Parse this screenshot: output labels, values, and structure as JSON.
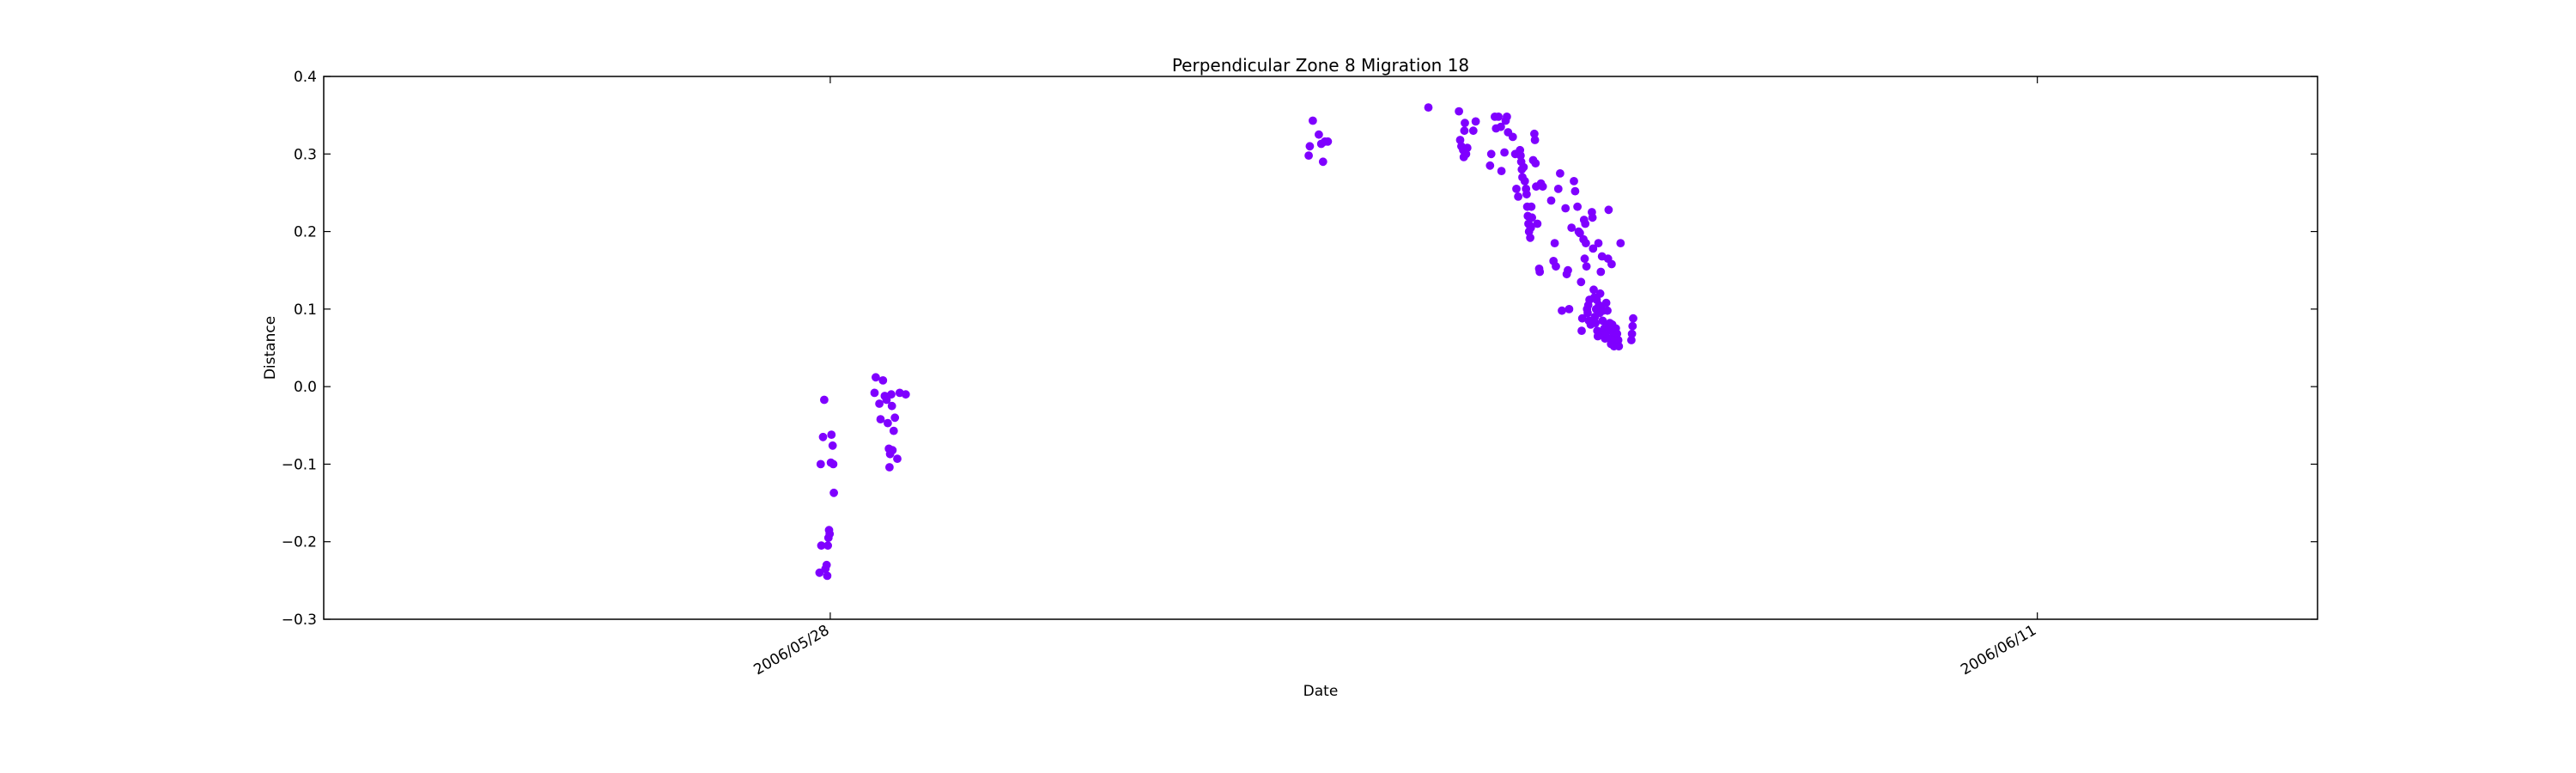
{
  "chart_data": {
    "type": "scatter",
    "title": "Perpendicular Zone 8 Migration 18",
    "xlabel": "Date",
    "ylabel": "Distance",
    "xlim": [
      "2006/05/22 03:00",
      "2006/06/14 06:00"
    ],
    "ylim": [
      -0.3,
      0.4
    ],
    "x_ticks": [
      "2006/05/28",
      "2006/06/11"
    ],
    "y_ticks": [
      "0.4",
      "0.3",
      "0.2",
      "0.1",
      "0.0",
      "−0.1",
      "−0.2",
      "−0.3"
    ],
    "y_tick_values": [
      0.4,
      0.3,
      0.2,
      0.1,
      0.0,
      -0.1,
      -0.2,
      -0.3
    ],
    "grid": false,
    "marker_color": "#7f00ff",
    "points": [
      [
        "2006/05/27 21:00",
        -0.24
      ],
      [
        "2006/05/27 21:30",
        -0.205
      ],
      [
        "2006/05/27 21:20",
        -0.1
      ],
      [
        "2006/05/27 22:00",
        -0.065
      ],
      [
        "2006/05/27 22:20",
        -0.017
      ],
      [
        "2006/05/27 22:40",
        -0.235
      ],
      [
        "2006/05/27 23:00",
        -0.23
      ],
      [
        "2006/05/27 23:10",
        -0.244
      ],
      [
        "2006/05/27 23:20",
        -0.205
      ],
      [
        "2006/05/27 23:30",
        -0.195
      ],
      [
        "2006/05/27 23:40",
        -0.185
      ],
      [
        "2006/05/27 23:50",
        -0.19
      ],
      [
        "2006/05/28 00:10",
        -0.098
      ],
      [
        "2006/05/28 00:20",
        -0.062
      ],
      [
        "2006/05/28 00:40",
        -0.076
      ],
      [
        "2006/05/28 00:50",
        -0.1
      ],
      [
        "2006/05/28 01:00",
        -0.137
      ],
      [
        "2006/05/28 12:20",
        -0.008
      ],
      [
        "2006/05/28 12:40",
        0.012
      ],
      [
        "2006/05/28 13:40",
        -0.022
      ],
      [
        "2006/05/28 14:00",
        -0.042
      ],
      [
        "2006/05/28 14:40",
        0.008
      ],
      [
        "2006/05/28 15:10",
        -0.012
      ],
      [
        "2006/05/28 15:40",
        -0.017
      ],
      [
        "2006/05/28 16:00",
        -0.047
      ],
      [
        "2006/05/28 16:20",
        -0.08
      ],
      [
        "2006/05/28 16:30",
        -0.104
      ],
      [
        "2006/05/28 16:40",
        -0.087
      ],
      [
        "2006/05/28 17:00",
        -0.01
      ],
      [
        "2006/05/28 17:10",
        -0.025
      ],
      [
        "2006/05/28 17:20",
        -0.082
      ],
      [
        "2006/05/28 17:40",
        -0.057
      ],
      [
        "2006/05/28 18:00",
        -0.04
      ],
      [
        "2006/05/28 18:40",
        -0.093
      ],
      [
        "2006/05/28 19:20",
        -0.008
      ],
      [
        "2006/05/28 21:00",
        -0.01
      ],
      [
        "2006/06/02 13:10",
        0.298
      ],
      [
        "2006/06/02 13:30",
        0.31
      ],
      [
        "2006/06/02 14:20",
        0.343
      ],
      [
        "2006/06/02 16:00",
        0.325
      ],
      [
        "2006/06/02 16:40",
        0.313
      ],
      [
        "2006/06/02 17:10",
        0.29
      ],
      [
        "2006/06/02 17:40",
        0.316
      ],
      [
        "2006/06/02 18:30",
        0.316
      ],
      [
        "2006/06/03 22:30",
        0.36
      ],
      [
        "2006/06/04 07:00",
        0.355
      ],
      [
        "2006/06/04 07:20",
        0.318
      ],
      [
        "2006/06/04 07:40",
        0.31
      ],
      [
        "2006/06/04 08:10",
        0.305
      ],
      [
        "2006/06/04 08:20",
        0.296
      ],
      [
        "2006/06/04 08:30",
        0.33
      ],
      [
        "2006/06/04 08:40",
        0.34
      ],
      [
        "2006/06/04 09:00",
        0.3
      ],
      [
        "2006/06/04 09:20",
        0.308
      ],
      [
        "2006/06/04 11:00",
        0.33
      ],
      [
        "2006/06/04 11:40",
        0.342
      ],
      [
        "2006/06/04 15:40",
        0.285
      ],
      [
        "2006/06/04 16:00",
        0.3
      ],
      [
        "2006/06/04 17:00",
        0.348
      ],
      [
        "2006/06/04 17:20",
        0.333
      ],
      [
        "2006/06/04 18:00",
        0.348
      ],
      [
        "2006/06/04 18:40",
        0.335
      ],
      [
        "2006/06/04 18:50",
        0.278
      ],
      [
        "2006/06/04 19:40",
        0.302
      ],
      [
        "2006/06/04 20:00",
        0.343
      ],
      [
        "2006/06/04 20:20",
        0.348
      ],
      [
        "2006/06/04 20:40",
        0.328
      ],
      [
        "2006/06/04 22:00",
        0.322
      ],
      [
        "2006/06/04 22:40",
        0.3
      ],
      [
        "2006/06/04 23:00",
        0.255
      ],
      [
        "2006/06/04 23:30",
        0.245
      ],
      [
        "2006/06/05 00:00",
        0.305
      ],
      [
        "2006/06/05 00:10",
        0.298
      ],
      [
        "2006/06/05 00:20",
        0.29
      ],
      [
        "2006/06/05 00:30",
        0.28
      ],
      [
        "2006/06/05 00:40",
        0.27
      ],
      [
        "2006/06/05 01:00",
        0.283
      ],
      [
        "2006/06/05 01:20",
        0.265
      ],
      [
        "2006/06/05 01:40",
        0.255
      ],
      [
        "2006/06/05 01:50",
        0.248
      ],
      [
        "2006/06/05 02:00",
        0.232
      ],
      [
        "2006/06/05 02:10",
        0.22
      ],
      [
        "2006/06/05 02:20",
        0.21
      ],
      [
        "2006/06/05 02:30",
        0.2
      ],
      [
        "2006/06/05 02:40",
        0.208
      ],
      [
        "2006/06/05 02:50",
        0.192
      ],
      [
        "2006/06/05 03:00",
        0.205
      ],
      [
        "2006/06/05 03:10",
        0.232
      ],
      [
        "2006/06/05 03:20",
        0.218
      ],
      [
        "2006/06/05 03:40",
        0.292
      ],
      [
        "2006/06/05 04:00",
        0.326
      ],
      [
        "2006/06/05 04:10",
        0.318
      ],
      [
        "2006/06/05 04:20",
        0.288
      ],
      [
        "2006/06/05 04:30",
        0.258
      ],
      [
        "2006/06/05 04:50",
        0.21
      ],
      [
        "2006/06/05 05:20",
        0.152
      ],
      [
        "2006/06/05 05:30",
        0.148
      ],
      [
        "2006/06/05 05:50",
        0.262
      ],
      [
        "2006/06/05 06:20",
        0.258
      ],
      [
        "2006/06/05 08:40",
        0.24
      ],
      [
        "2006/06/05 09:20",
        0.162
      ],
      [
        "2006/06/05 09:40",
        0.185
      ],
      [
        "2006/06/05 10:00",
        0.155
      ],
      [
        "2006/06/05 10:40",
        0.255
      ],
      [
        "2006/06/05 11:10",
        0.275
      ],
      [
        "2006/06/05 11:40",
        0.098
      ],
      [
        "2006/06/05 12:40",
        0.23
      ],
      [
        "2006/06/05 13:00",
        0.145
      ],
      [
        "2006/06/05 13:20",
        0.15
      ],
      [
        "2006/06/05 13:40",
        0.1
      ],
      [
        "2006/06/05 14:20",
        0.205
      ],
      [
        "2006/06/05 15:00",
        0.265
      ],
      [
        "2006/06/05 15:20",
        0.252
      ],
      [
        "2006/06/05 16:00",
        0.232
      ],
      [
        "2006/06/05 16:20",
        0.2
      ],
      [
        "2006/06/05 16:40",
        0.198
      ],
      [
        "2006/06/05 17:00",
        0.135
      ],
      [
        "2006/06/05 17:10",
        0.072
      ],
      [
        "2006/06/05 17:20",
        0.088
      ],
      [
        "2006/06/05 17:40",
        0.19
      ],
      [
        "2006/06/05 17:50",
        0.215
      ],
      [
        "2006/06/05 18:00",
        0.165
      ],
      [
        "2006/06/05 18:10",
        0.21
      ],
      [
        "2006/06/05 18:20",
        0.185
      ],
      [
        "2006/06/05 18:30",
        0.155
      ],
      [
        "2006/06/05 18:40",
        0.1
      ],
      [
        "2006/06/05 18:50",
        0.095
      ],
      [
        "2006/06/05 19:00",
        0.105
      ],
      [
        "2006/06/05 19:10",
        0.085
      ],
      [
        "2006/06/05 19:20",
        0.112
      ],
      [
        "2006/06/05 19:40",
        0.08
      ],
      [
        "2006/06/05 20:00",
        0.225
      ],
      [
        "2006/06/05 20:10",
        0.218
      ],
      [
        "2006/06/05 20:20",
        0.178
      ],
      [
        "2006/06/05 20:30",
        0.125
      ],
      [
        "2006/06/05 20:40",
        0.115
      ],
      [
        "2006/06/05 20:50",
        0.09
      ],
      [
        "2006/06/05 21:00",
        0.082
      ],
      [
        "2006/06/05 21:10",
        0.1
      ],
      [
        "2006/06/05 21:20",
        0.112
      ],
      [
        "2006/06/05 21:30",
        0.072
      ],
      [
        "2006/06/05 21:40",
        0.065
      ],
      [
        "2006/06/05 21:50",
        0.185
      ],
      [
        "2006/06/05 22:00",
        0.105
      ],
      [
        "2006/06/05 22:10",
        0.095
      ],
      [
        "2006/06/05 22:20",
        0.12
      ],
      [
        "2006/06/05 22:30",
        0.148
      ],
      [
        "2006/06/05 22:40",
        0.102
      ],
      [
        "2006/06/05 22:50",
        0.168
      ],
      [
        "2006/06/05 23:00",
        0.085
      ],
      [
        "2006/06/05 23:10",
        0.098
      ],
      [
        "2006/06/05 23:20",
        0.07
      ],
      [
        "2006/06/05 23:30",
        0.075
      ],
      [
        "2006/06/05 23:40",
        0.062
      ],
      [
        "2006/06/05 23:50",
        0.068
      ],
      [
        "2006/06/06 00:00",
        0.108
      ],
      [
        "2006/06/06 00:10",
        0.08
      ],
      [
        "2006/06/06 00:20",
        0.098
      ],
      [
        "2006/06/06 00:30",
        0.165
      ],
      [
        "2006/06/06 00:40",
        0.228
      ],
      [
        "2006/06/06 00:50",
        0.075
      ],
      [
        "2006/06/06 01:00",
        0.082
      ],
      [
        "2006/06/06 01:10",
        0.062
      ],
      [
        "2006/06/06 01:20",
        0.055
      ],
      [
        "2006/06/06 01:30",
        0.158
      ],
      [
        "2006/06/06 01:40",
        0.08
      ],
      [
        "2006/06/06 01:50",
        0.058
      ],
      [
        "2006/06/06 02:00",
        0.07
      ],
      [
        "2006/06/06 02:10",
        0.052
      ],
      [
        "2006/06/06 02:20",
        0.062
      ],
      [
        "2006/06/06 02:40",
        0.075
      ],
      [
        "2006/06/06 03:00",
        0.068
      ],
      [
        "2006/06/06 03:10",
        0.055
      ],
      [
        "2006/06/06 03:20",
        0.06
      ],
      [
        "2006/06/06 03:30",
        0.052
      ],
      [
        "2006/06/06 04:00",
        0.185
      ],
      [
        "2006/06/06 07:00",
        0.06
      ],
      [
        "2006/06/06 07:10",
        0.068
      ],
      [
        "2006/06/06 07:20",
        0.078
      ],
      [
        "2006/06/06 07:30",
        0.088
      ]
    ]
  }
}
